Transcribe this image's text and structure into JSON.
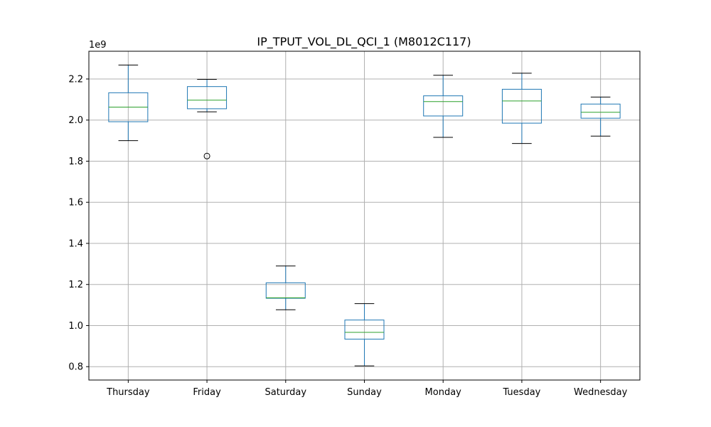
{
  "chart_data": {
    "type": "box",
    "title": "IP_TPUT_VOL_DL_QCI_1 (M8012C117)",
    "xlabel": "",
    "ylabel": "",
    "y_multiplier_label": "1e9",
    "ylim": [
      0.735,
      2.335
    ],
    "yticks": [
      0.8,
      1.0,
      1.2,
      1.4,
      1.6,
      1.8,
      2.0,
      2.2
    ],
    "ytick_labels": [
      "0.8",
      "1.0",
      "1.2",
      "1.4",
      "1.6",
      "1.8",
      "2.0",
      "2.2"
    ],
    "grid": true,
    "categories": [
      "Thursday",
      "Friday",
      "Saturday",
      "Sunday",
      "Monday",
      "Tuesday",
      "Wednesday"
    ],
    "boxes": [
      {
        "category": "Thursday",
        "whisker_low": 1.9,
        "q1": 1.992,
        "median": 2.063,
        "q3": 2.133,
        "whisker_high": 2.268,
        "outliers": []
      },
      {
        "category": "Friday",
        "whisker_low": 2.04,
        "q1": 2.055,
        "median": 2.097,
        "q3": 2.163,
        "whisker_high": 2.198,
        "outliers": [
          1.825
        ]
      },
      {
        "category": "Saturday",
        "whisker_low": 1.077,
        "q1": 1.133,
        "median": 1.135,
        "q3": 1.208,
        "whisker_high": 1.29,
        "outliers": []
      },
      {
        "category": "Sunday",
        "whisker_low": 0.804,
        "q1": 0.934,
        "median": 0.967,
        "q3": 1.027,
        "whisker_high": 1.107,
        "outliers": []
      },
      {
        "category": "Monday",
        "whisker_low": 1.916,
        "q1": 2.02,
        "median": 2.09,
        "q3": 2.118,
        "whisker_high": 2.218,
        "outliers": []
      },
      {
        "category": "Tuesday",
        "whisker_low": 1.886,
        "q1": 1.985,
        "median": 2.093,
        "q3": 2.15,
        "whisker_high": 2.228,
        "outliers": []
      },
      {
        "category": "Wednesday",
        "whisker_low": 1.922,
        "q1": 2.009,
        "median": 2.038,
        "q3": 2.078,
        "whisker_high": 2.112,
        "outliers": []
      }
    ],
    "colors": {
      "box": "#1f77b4",
      "median": "#2ca02c",
      "whisker_cap": "#000000",
      "grid": "#b0b0b0",
      "outlier": "#000000"
    }
  }
}
